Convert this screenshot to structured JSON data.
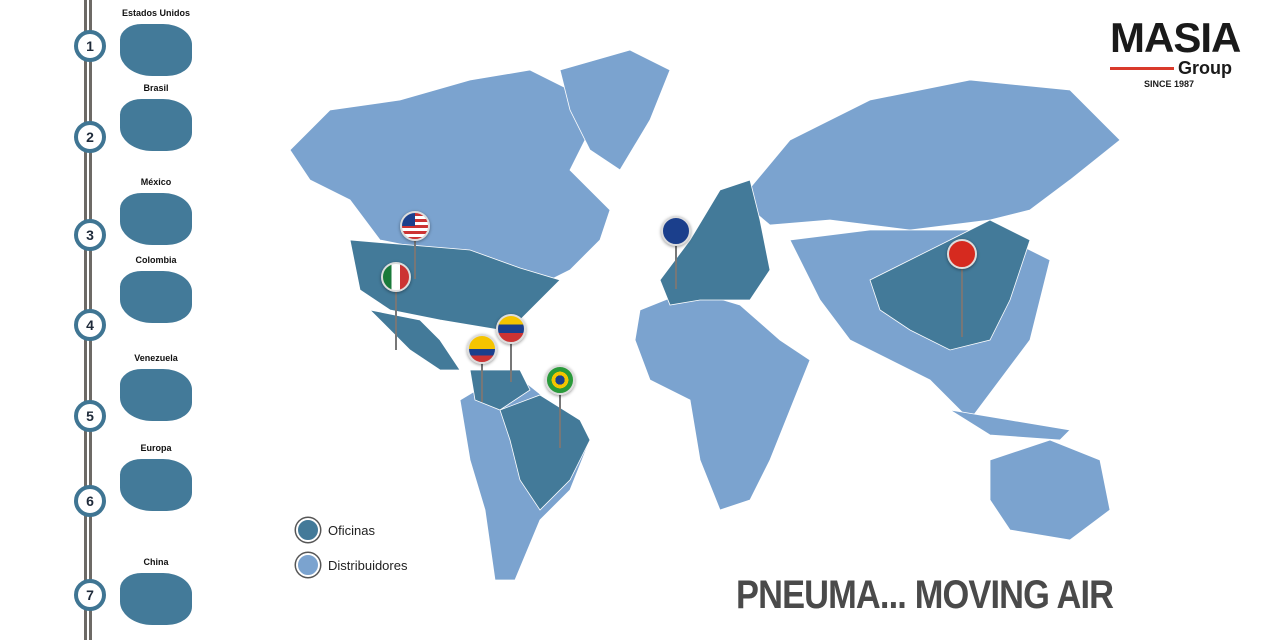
{
  "sidebar": {
    "items": [
      {
        "number": "1",
        "label": "Estados Unidos"
      },
      {
        "number": "2",
        "label": "Brasil"
      },
      {
        "number": "3",
        "label": "México"
      },
      {
        "number": "4",
        "label": "Colombia"
      },
      {
        "number": "5",
        "label": "Venezuela"
      },
      {
        "number": "6",
        "label": "Europa"
      },
      {
        "number": "7",
        "label": "China"
      }
    ]
  },
  "logo": {
    "name": "MASIA",
    "sub": "Group",
    "since": "SINCE 1987"
  },
  "legend": {
    "offices": {
      "label": "Oficinas",
      "color": "#437a99"
    },
    "distributors": {
      "label": "Distribuidores",
      "color": "#7ba3cf"
    }
  },
  "pins": [
    "usa-flag",
    "mexico-flag",
    "colombia-flag",
    "venezuela-flag",
    "brazil-flag",
    "eu-flag",
    "china-flag"
  ],
  "slogan": "PNEUMA... MOVING AIR"
}
